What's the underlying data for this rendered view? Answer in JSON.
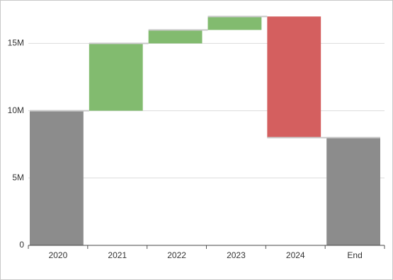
{
  "chart_data": {
    "type": "waterfall",
    "categories": [
      "2020",
      "2021",
      "2022",
      "2023",
      "2024",
      "End"
    ],
    "values": [
      10000000,
      5000000,
      1000000,
      1000000,
      -9000000,
      8000000
    ],
    "is_total": [
      true,
      false,
      false,
      false,
      false,
      true
    ],
    "total_color": "#8c8c8c",
    "increase_color": "#82bb6f",
    "decrease_color": "#d45f5f",
    "ylim": [
      0,
      17700000
    ],
    "yticks": [
      0,
      {
        "value": 5000000,
        "label": "5M"
      },
      {
        "value": 10000000,
        "label": "10M"
      },
      {
        "value": 15000000,
        "label": "15M"
      }
    ],
    "grid": true
  }
}
